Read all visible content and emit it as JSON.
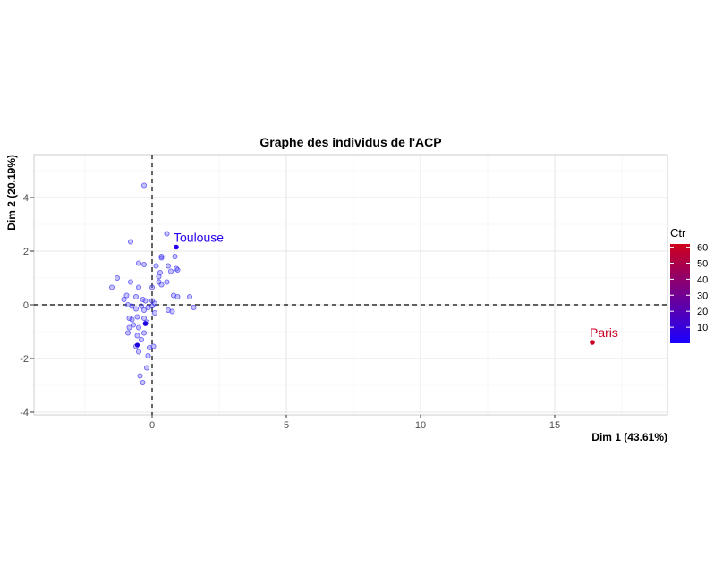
{
  "chart_data": {
    "type": "scatter",
    "title": "Graphe des individus de l'ACP",
    "xlabel": "Dim 1 (43.61%)",
    "ylabel": "Dim 2 (20.19%)",
    "xlim": [
      -4.4,
      19.2
    ],
    "ylim": [
      -4.1,
      5.6
    ],
    "xticks": [
      0,
      5,
      10,
      15
    ],
    "yticks": [
      -4,
      -2,
      0,
      2,
      4
    ],
    "grid": true,
    "reference_lines": {
      "x": 0,
      "y": 0
    },
    "legend": {
      "title": "Ctr",
      "position": "right",
      "range": [
        0,
        62
      ],
      "ticks": [
        10,
        20,
        30,
        40,
        50,
        60
      ],
      "low_color": "#1a00ff",
      "high_color": "#d0001c"
    },
    "labeled_points": [
      {
        "label": "Toulouse",
        "x": 0.9,
        "y": 2.15,
        "ctr": 5
      },
      {
        "label": "Paris",
        "x": 16.4,
        "y": -1.4,
        "ctr": 60
      }
    ],
    "points": [
      [
        -0.3,
        4.45
      ],
      [
        -0.8,
        2.35
      ],
      [
        0.55,
        2.65
      ],
      [
        0.35,
        1.8
      ],
      [
        0.35,
        1.75
      ],
      [
        0.85,
        1.8
      ],
      [
        0.9,
        1.35
      ],
      [
        0.6,
        1.45
      ],
      [
        0.15,
        1.45
      ],
      [
        0.3,
        1.2
      ],
      [
        -0.5,
        1.55
      ],
      [
        -0.3,
        1.5
      ],
      [
        0.95,
        1.3
      ],
      [
        0.7,
        1.25
      ],
      [
        0.25,
        1.05
      ],
      [
        -1.3,
        1.0
      ],
      [
        -0.8,
        0.85
      ],
      [
        0.25,
        0.85
      ],
      [
        0.55,
        0.85
      ],
      [
        -1.5,
        0.65
      ],
      [
        -0.5,
        0.65
      ],
      [
        0.0,
        0.65
      ],
      [
        0.35,
        0.75
      ],
      [
        -0.95,
        0.35
      ],
      [
        -0.6,
        0.3
      ],
      [
        -1.05,
        0.2
      ],
      [
        0.8,
        0.35
      ],
      [
        0.95,
        0.3
      ],
      [
        1.4,
        0.3
      ],
      [
        -0.35,
        0.2
      ],
      [
        -0.25,
        0.15
      ],
      [
        0.0,
        0.15
      ],
      [
        0.1,
        0.05
      ],
      [
        -0.9,
        0.0
      ],
      [
        -0.75,
        -0.05
      ],
      [
        -0.4,
        -0.05
      ],
      [
        -0.15,
        -0.1
      ],
      [
        0.0,
        -0.05
      ],
      [
        -0.6,
        -0.15
      ],
      [
        -0.3,
        -0.2
      ],
      [
        0.6,
        -0.2
      ],
      [
        -0.85,
        -0.5
      ],
      [
        -0.55,
        -0.45
      ],
      [
        -0.3,
        -0.5
      ],
      [
        0.1,
        -0.3
      ],
      [
        0.75,
        -0.25
      ],
      [
        1.55,
        -0.1
      ],
      [
        -0.7,
        -0.75
      ],
      [
        -0.5,
        -0.85
      ],
      [
        -0.2,
        -0.65
      ],
      [
        -0.25,
        -0.7
      ],
      [
        -0.9,
        -1.05
      ],
      [
        -0.3,
        -1.05
      ],
      [
        -0.55,
        -1.15
      ],
      [
        -0.4,
        -1.3
      ],
      [
        -0.6,
        -1.55
      ],
      [
        0.05,
        -1.55
      ],
      [
        -0.5,
        -1.75
      ],
      [
        -0.15,
        -1.9
      ],
      [
        -0.2,
        -2.35
      ],
      [
        -0.45,
        -2.65
      ],
      [
        -0.35,
        -2.9
      ],
      [
        -0.75,
        -0.55
      ],
      [
        -0.85,
        -0.85
      ],
      [
        -0.1,
        -1.6
      ]
    ],
    "highlighted_points": [
      [
        -0.55,
        -1.5
      ],
      [
        -0.25,
        -0.7
      ]
    ]
  }
}
